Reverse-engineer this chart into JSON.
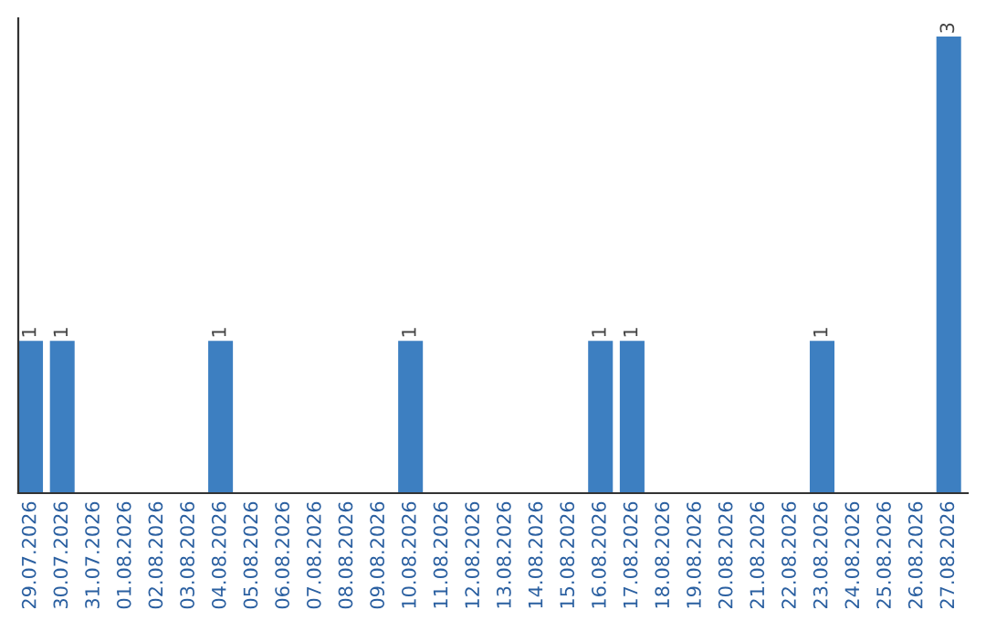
{
  "chart_data": {
    "type": "bar",
    "categories": [
      "29.07.2026",
      "30.07.2026",
      "31.07.2026",
      "01.08.2026",
      "02.08.2026",
      "03.08.2026",
      "04.08.2026",
      "05.08.2026",
      "06.08.2026",
      "07.08.2026",
      "08.08.2026",
      "09.08.2026",
      "10.08.2026",
      "11.08.2026",
      "12.08.2026",
      "13.08.2026",
      "14.08.2026",
      "15.08.2026",
      "16.08.2026",
      "17.08.2026",
      "18.08.2026",
      "19.08.2026",
      "20.08.2026",
      "21.08.2026",
      "22.08.2026",
      "23.08.2026",
      "24.08.2026",
      "25.08.2026",
      "26.08.2026",
      "27.08.2026"
    ],
    "values": [
      1,
      1,
      0,
      0,
      0,
      0,
      1,
      0,
      0,
      0,
      0,
      0,
      1,
      0,
      0,
      0,
      0,
      0,
      1,
      1,
      0,
      0,
      0,
      0,
      0,
      1,
      0,
      0,
      0,
      3
    ],
    "value_labels": [
      "1",
      "1",
      null,
      null,
      null,
      null,
      "1",
      null,
      null,
      null,
      null,
      null,
      "1",
      null,
      null,
      null,
      null,
      null,
      "1",
      "1",
      null,
      null,
      null,
      null,
      null,
      "1",
      null,
      null,
      null,
      "3"
    ],
    "color": "#3d7fc1",
    "grid": false,
    "legend": false
  }
}
